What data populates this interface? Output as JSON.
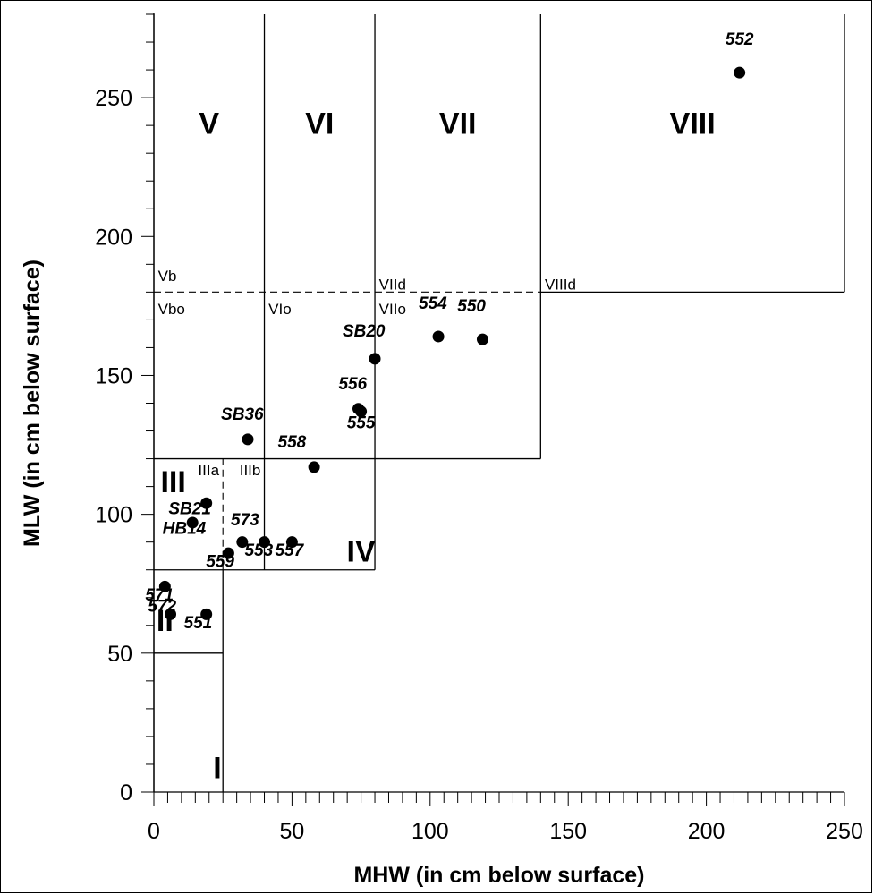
{
  "chart_data": {
    "type": "scatter",
    "xlabel": "MHW (in cm below surface)",
    "ylabel": "MLW (in cm below surface)",
    "xlim": [
      0,
      250
    ],
    "ylim": [
      0,
      280
    ],
    "x_ticks": [
      "0",
      "50",
      "100",
      "150",
      "200",
      "250"
    ],
    "y_ticks": [
      "0",
      "50",
      "100",
      "150",
      "200",
      "250"
    ],
    "grid": false,
    "points": [
      {
        "label": "552",
        "x": 212,
        "y": 259
      },
      {
        "label": "554",
        "x": 103,
        "y": 164
      },
      {
        "label": "550",
        "x": 119,
        "y": 163
      },
      {
        "label": "SB20",
        "x": 80,
        "y": 156
      },
      {
        "label": "556",
        "x": 74,
        "y": 138
      },
      {
        "label": "555",
        "x": 75,
        "y": 137
      },
      {
        "label": "SB36",
        "x": 34,
        "y": 127
      },
      {
        "label": "558",
        "x": 58,
        "y": 117
      },
      {
        "label": "SB21",
        "x": 19,
        "y": 104
      },
      {
        "label": "HB14",
        "x": 14,
        "y": 97
      },
      {
        "label": "573",
        "x": 32,
        "y": 90
      },
      {
        "label": "553",
        "x": 40,
        "y": 90
      },
      {
        "label": "557",
        "x": 50,
        "y": 90
      },
      {
        "label": "559",
        "x": 27,
        "y": 86
      },
      {
        "label": "571",
        "x": 4,
        "y": 74
      },
      {
        "label": "572",
        "x": 6,
        "y": 64
      },
      {
        "label": "551",
        "x": 19,
        "y": 64
      }
    ],
    "zones": [
      {
        "label": "I"
      },
      {
        "label": "II"
      },
      {
        "label": "III"
      },
      {
        "label": "IV"
      },
      {
        "label": "V"
      },
      {
        "label": "VI"
      },
      {
        "label": "VII"
      },
      {
        "label": "VIII"
      }
    ],
    "subzones": [
      "Vb",
      "Vbo",
      "VIo",
      "VIId",
      "VIIo",
      "VIIId",
      "IIIa",
      "IIIb"
    ]
  }
}
